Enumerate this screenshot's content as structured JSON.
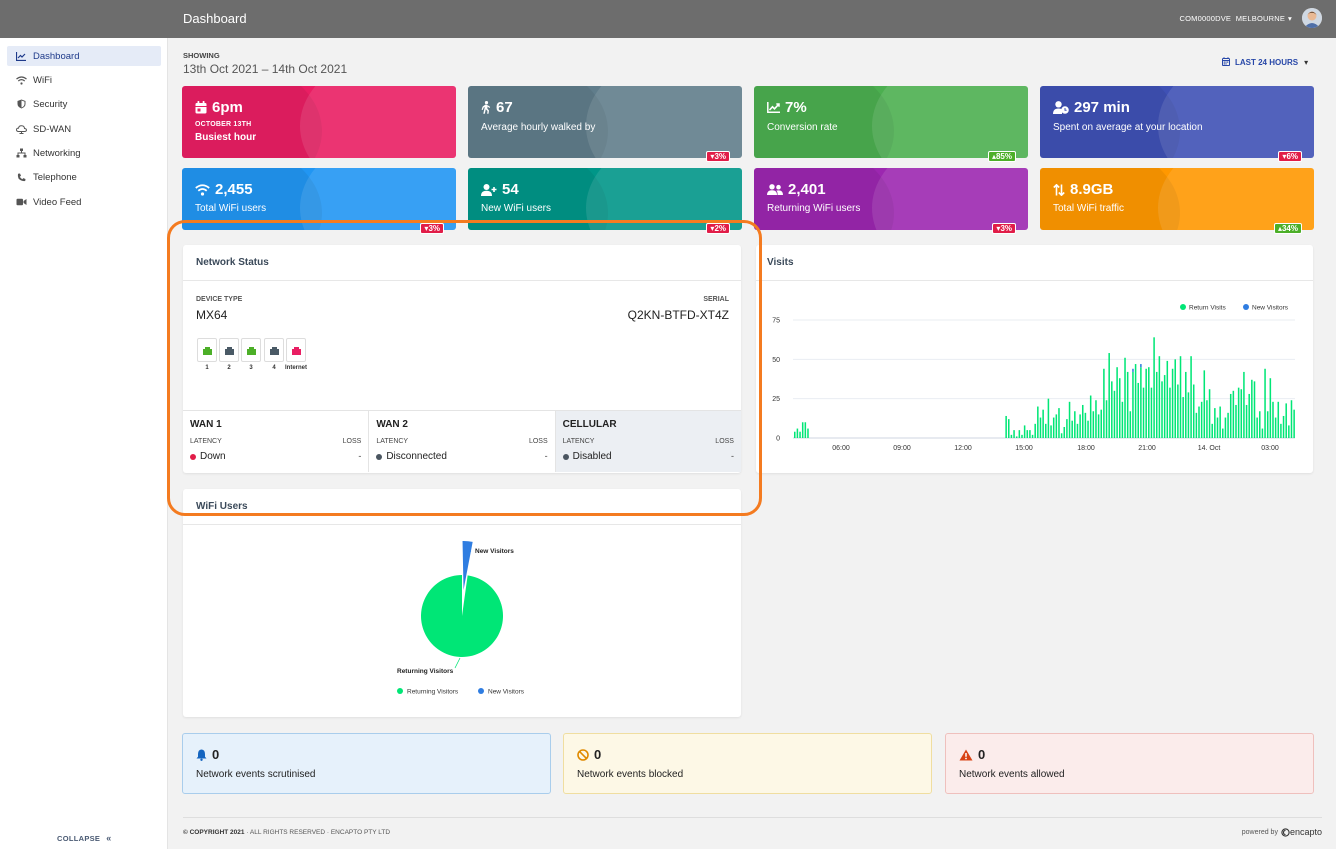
{
  "header": {
    "title": "Dashboard",
    "account": "COM0000DVE",
    "location": "MELBOURNE"
  },
  "sidebar": {
    "items": [
      {
        "label": "Dashboard",
        "icon": "chart-line-icon",
        "active": true
      },
      {
        "label": "WiFi",
        "icon": "wifi-icon"
      },
      {
        "label": "Security",
        "icon": "shield-icon"
      },
      {
        "label": "SD-WAN",
        "icon": "cloud-icon"
      },
      {
        "label": "Networking",
        "icon": "network-icon"
      },
      {
        "label": "Telephone",
        "icon": "phone-icon"
      },
      {
        "label": "Video Feed",
        "icon": "video-icon"
      }
    ],
    "collapse_label": "COLLAPSE"
  },
  "showing": {
    "label": "SHOWING",
    "range": "13th Oct 2021 – 14th Oct 2021",
    "range_button": "LAST 24 HOURS"
  },
  "stats": [
    {
      "value": "6pm",
      "sub": "OCTOBER 13TH",
      "label": "Busiest hour",
      "icon": "calendar-icon",
      "color": "#e91e63"
    },
    {
      "value": "67",
      "label": "Average hourly walked by",
      "badge": "3%",
      "trend": "down",
      "icon": "walking-icon",
      "color": "#607d8b"
    },
    {
      "value": "7%",
      "label": "Conversion rate",
      "badge": "85%",
      "trend": "up",
      "icon": "trend-icon",
      "color": "#4caf50"
    },
    {
      "value": "297 min",
      "label": "Spent on average at your location",
      "badge": "6%",
      "trend": "down",
      "icon": "user-clock-icon",
      "color": "#3f51b5"
    },
    {
      "value": "2,455",
      "label": "Total WiFi users",
      "badge": "3%",
      "trend": "down",
      "icon": "wifi-icon",
      "color": "#2196f3"
    },
    {
      "value": "54",
      "label": "New WiFi users",
      "badge": "2%",
      "trend": "down",
      "icon": "user-plus-icon",
      "color": "#009688"
    },
    {
      "value": "2,401",
      "label": "Returning WiFi users",
      "badge": "3%",
      "trend": "down",
      "icon": "users-icon",
      "color": "#9c27b0"
    },
    {
      "value": "8.9GB",
      "label": "Total WiFi traffic",
      "badge": "34%",
      "trend": "up",
      "icon": "transfer-icon",
      "color": "#ff9800"
    }
  ],
  "network_status": {
    "title": "Network Status",
    "device_type_label": "DEVICE TYPE",
    "device_type": "MX64",
    "serial_label": "SERIAL",
    "serial": "Q2KN-BTFD-XT4Z",
    "ports": [
      {
        "label": "1",
        "status": "green"
      },
      {
        "label": "2",
        "status": "gray"
      },
      {
        "label": "3",
        "status": "green"
      },
      {
        "label": "4",
        "status": "gray"
      },
      {
        "label": "Internet",
        "status": "red"
      }
    ],
    "wans": [
      {
        "name": "WAN 1",
        "latency_label": "LATENCY",
        "loss_label": "LOSS",
        "status": "Down",
        "status_color": "#e11d48",
        "loss": "-"
      },
      {
        "name": "WAN 2",
        "latency_label": "LATENCY",
        "loss_label": "LOSS",
        "status": "Disconnected",
        "status_color": "#4a5560",
        "loss": "-"
      },
      {
        "name": "CELLULAR",
        "latency_label": "LATENCY",
        "loss_label": "LOSS",
        "status": "Disabled",
        "status_color": "#4a5560",
        "loss": "-"
      }
    ]
  },
  "visits": {
    "title": "Visits"
  },
  "wifi_users": {
    "title": "WiFi Users"
  },
  "chart_data": [
    {
      "type": "bar",
      "title": "Visits",
      "xlabel": "",
      "ylabel": "",
      "ylim": [
        0,
        75
      ],
      "yticks": [
        0,
        25,
        50,
        75
      ],
      "xtick_labels": [
        "06:00",
        "09:00",
        "12:00",
        "15:00",
        "18:00",
        "21:00",
        "14. Oct",
        "03:00"
      ],
      "legend": "top-right",
      "grid": true,
      "series": [
        {
          "name": "Return Visits",
          "color": "#00e676",
          "values": [
            4,
            6,
            4,
            10,
            10,
            6,
            0,
            0,
            0,
            0,
            0,
            0,
            0,
            0,
            0,
            0,
            0,
            0,
            0,
            0,
            0,
            0,
            0,
            0,
            0,
            0,
            0,
            0,
            0,
            0,
            0,
            0,
            0,
            0,
            0,
            0,
            0,
            0,
            0,
            0,
            0,
            0,
            0,
            0,
            0,
            0,
            0,
            0,
            0,
            0,
            0,
            0,
            0,
            0,
            0,
            0,
            0,
            0,
            0,
            0,
            0,
            0,
            0,
            0,
            0,
            0,
            0,
            0,
            0,
            0,
            0,
            0,
            0,
            0,
            0,
            0,
            0,
            0,
            0,
            0,
            14,
            12,
            2,
            5,
            1,
            5,
            2,
            8,
            5,
            5,
            2,
            9,
            20,
            13,
            18,
            9,
            25,
            8,
            13,
            15,
            19,
            3,
            7,
            12,
            23,
            11,
            17,
            9,
            15,
            21,
            16,
            11,
            27,
            17,
            24,
            15,
            18,
            44,
            24,
            54,
            36,
            30,
            45,
            38,
            23,
            51,
            42,
            17,
            42,
            47,
            35,
            45,
            32,
            44,
            45,
            32,
            64,
            42,
            52,
            36,
            40,
            49,
            32,
            44,
            50,
            34,
            52,
            26,
            42,
            29,
            52,
            34,
            16,
            20,
            23,
            43,
            24,
            31,
            9,
            19,
            13,
            20,
            6,
            13,
            16,
            28,
            30,
            21,
            32,
            31,
            42,
            21,
            28,
            37,
            36,
            13,
            17,
            6,
            44,
            17,
            38,
            23,
            13,
            23,
            9,
            14,
            22,
            8,
            24,
            18
          ]
        },
        {
          "name": "New Visitors",
          "color": "#2f7de1",
          "values": [
            0,
            0,
            0,
            0,
            0,
            0,
            0,
            0,
            0,
            0,
            0,
            0,
            0,
            0,
            0,
            0,
            0,
            0,
            0,
            0,
            0,
            0,
            0,
            0,
            0,
            0,
            0,
            0,
            0,
            0,
            0,
            0,
            0,
            0,
            0,
            0,
            0,
            0,
            0,
            0,
            0,
            0,
            0,
            0,
            0,
            0,
            0,
            0,
            0,
            0,
            0,
            0,
            0,
            0,
            0,
            0,
            0,
            0,
            0,
            0,
            0,
            0,
            0,
            0,
            0,
            0,
            0,
            0,
            0,
            0,
            0,
            0,
            0,
            0,
            0,
            0,
            0,
            0,
            0,
            0,
            0,
            0,
            0,
            0,
            0,
            0,
            0,
            0,
            0,
            0,
            0,
            0,
            0,
            0,
            0,
            0,
            0,
            0,
            0,
            0,
            0,
            0,
            0,
            0,
            0,
            0,
            0,
            0,
            0,
            0,
            0,
            0,
            0,
            0,
            0,
            0,
            0,
            0,
            0,
            0,
            0,
            0,
            0,
            0,
            0,
            0,
            0,
            0,
            2,
            0,
            0,
            2,
            0,
            0,
            0,
            0,
            0,
            0,
            0,
            0,
            0,
            0,
            0,
            0,
            0,
            0,
            0,
            0,
            0,
            0,
            0,
            0,
            0,
            0,
            0,
            0,
            0,
            0,
            0,
            0,
            0,
            0,
            0,
            0,
            0,
            0,
            0,
            0,
            0,
            0,
            0,
            0,
            0,
            0,
            0,
            0,
            0,
            0,
            0,
            0,
            0,
            0,
            0,
            0,
            0,
            0,
            0,
            0,
            0,
            0
          ]
        }
      ]
    },
    {
      "type": "pie",
      "title": "WiFi Users",
      "legend": "bottom",
      "categories": [
        "Returning Visitors",
        "New Visitors"
      ],
      "values": [
        2401,
        54
      ],
      "colors": [
        "#00e676",
        "#2f7de1"
      ]
    }
  ],
  "events": [
    {
      "value": "0",
      "label": "Network events scrutinised",
      "icon": "bell-icon",
      "bg": "#e6f1fb",
      "border": "#a9cdec",
      "icon_color": "#1565c0"
    },
    {
      "value": "0",
      "label": "Network events blocked",
      "icon": "ban-icon",
      "bg": "#fdf8e6",
      "border": "#f0dea0",
      "icon_color": "#e08a00"
    },
    {
      "value": "0",
      "label": "Network events allowed",
      "icon": "warning-icon",
      "bg": "#fbeceb",
      "border": "#efc0bd",
      "icon_color": "#d84315"
    }
  ],
  "footer": {
    "copyright": "© COPYRIGHT 2021",
    "rights": " · ALL RIGHTS RESERVED · ENCAPTO PTY LTD",
    "powered_by": "powered by",
    "brand": "encapto"
  }
}
